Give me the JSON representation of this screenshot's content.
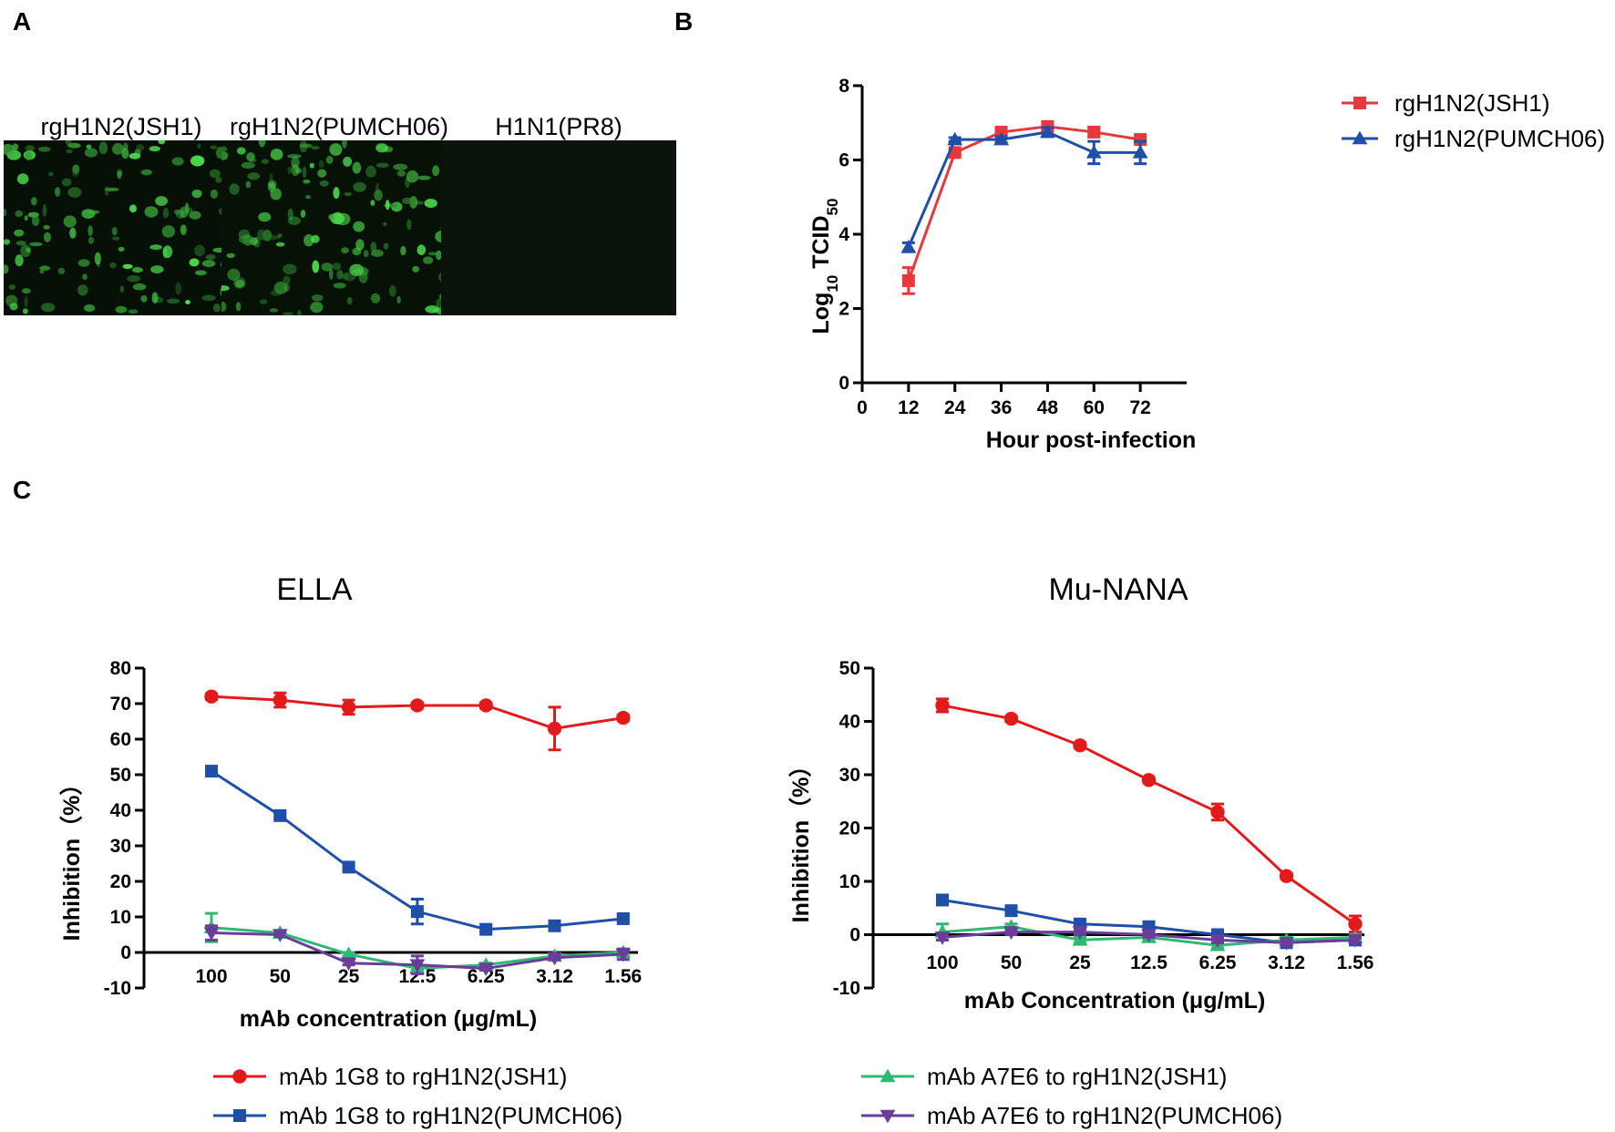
{
  "panels": {
    "a": "A",
    "b": "B",
    "c": "C"
  },
  "micrographs": [
    {
      "label": "rgH1N2(JSH1)",
      "brightness": 0.85
    },
    {
      "label": "rgH1N2(PUMCH06)",
      "brightness": 0.9
    },
    {
      "label": "H1N1(PR8)",
      "brightness": 0.0
    }
  ],
  "chart_data": [
    {
      "id": "B",
      "type": "line",
      "x": [
        12,
        24,
        36,
        48,
        60,
        72
      ],
      "xticks": [
        "0",
        "12",
        "24",
        "36",
        "48",
        "60",
        "72"
      ],
      "xlim": [
        0,
        84
      ],
      "ylim": [
        0,
        8
      ],
      "yticks": [
        "0",
        "2",
        "4",
        "6",
        "8"
      ],
      "xlabel": "Hour post-infection",
      "ylabel": "Log10 TCID50",
      "ylabel_main": "Log",
      "ylabel_sub1": "10",
      "ylabel_mid": " TCID",
      "ylabel_sub2": "50",
      "legend_position": "right",
      "series": [
        {
          "name": "rgH1N2(JSH1)",
          "color": "#e8383b",
          "marker": "square",
          "values": [
            2.75,
            6.2,
            6.75,
            6.9,
            6.75,
            6.55
          ],
          "err": [
            0.35,
            0.05,
            0.1,
            0.1,
            0.12,
            0.08
          ]
        },
        {
          "name": "rgH1N2(PUMCH06)",
          "color": "#1f4fa8",
          "marker": "triangle",
          "values": [
            3.65,
            6.55,
            6.55,
            6.75,
            6.2,
            6.2
          ],
          "err": [
            0.12,
            0.05,
            0.08,
            0.12,
            0.3,
            0.3
          ]
        }
      ]
    },
    {
      "id": "C-ELLA",
      "type": "line",
      "title": "ELLA",
      "categories": [
        "100",
        "50",
        "25",
        "12.5",
        "6.25",
        "3.12",
        "1.56"
      ],
      "ylim": [
        -10,
        80
      ],
      "yticks": [
        "-10",
        "0",
        "10",
        "20",
        "30",
        "40",
        "50",
        "60",
        "70",
        "80"
      ],
      "xlabel": "mAb concentration (μg/mL)",
      "ylabel": "Inhibition（%）",
      "series": [
        {
          "name": "mAb 1G8 to rgH1N2(JSH1)",
          "color": "#e31a1c",
          "marker": "circle",
          "values": [
            72,
            71,
            69,
            69.5,
            69.5,
            63,
            66
          ],
          "err": [
            0.8,
            2,
            2,
            0.8,
            0.8,
            6,
            0.8
          ]
        },
        {
          "name": "mAb 1G8 to rgH1N2(PUMCH06)",
          "color": "#1f4fa8",
          "marker": "square",
          "values": [
            51,
            38.5,
            24,
            11.5,
            6.5,
            7.5,
            9.5
          ],
          "err": [
            0.8,
            0.8,
            0.8,
            3.5,
            0.8,
            0.8,
            0.8
          ]
        },
        {
          "name": "mAb A7E6 to rgH1N2(JSH1)",
          "color": "#2eb872",
          "marker": "triangle",
          "values": [
            7,
            5.5,
            -0.5,
            -4.5,
            -3.5,
            -1,
            0
          ],
          "err": [
            4,
            0.5,
            0.5,
            0.5,
            0.5,
            0.5,
            0.5
          ]
        },
        {
          "name": "mAb A7E6 to rgH1N2(PUMCH06)",
          "color": "#6a3d9a",
          "marker": "triangle-down",
          "values": [
            5.5,
            5,
            -3,
            -3.5,
            -4.5,
            -1.5,
            -0.5
          ],
          "err": [
            2,
            0.5,
            0.5,
            2.5,
            0.5,
            0.5,
            1.5
          ]
        }
      ]
    },
    {
      "id": "C-MuNANA",
      "type": "line",
      "title": "Mu-NANA",
      "categories": [
        "100",
        "50",
        "25",
        "12.5",
        "6.25",
        "3.12",
        "1.56"
      ],
      "ylim": [
        -10,
        50
      ],
      "yticks": [
        "-10",
        "0",
        "10",
        "20",
        "30",
        "40",
        "50"
      ],
      "xlabel": "mAb Concentration (μg/mL)",
      "ylabel": "Inhibition（%）",
      "series": [
        {
          "name": "mAb 1G8 to rgH1N2(JSH1)",
          "color": "#e31a1c",
          "marker": "circle",
          "values": [
            43,
            40.5,
            35.5,
            29,
            23,
            11,
            2
          ],
          "err": [
            1.2,
            0.5,
            0.5,
            0.5,
            1.5,
            0.5,
            1.5
          ]
        },
        {
          "name": "mAb 1G8 to rgH1N2(PUMCH06)",
          "color": "#1f4fa8",
          "marker": "square",
          "values": [
            6.5,
            4.5,
            2,
            1.5,
            0,
            -1.5,
            -1
          ],
          "err": [
            0.5,
            0.5,
            0.5,
            0.5,
            0.5,
            0.5,
            0.5
          ]
        },
        {
          "name": "mAb A7E6 to rgH1N2(JSH1)",
          "color": "#2eb872",
          "marker": "triangle",
          "values": [
            0.5,
            1.5,
            -1,
            -0.5,
            -2,
            -1,
            -0.5
          ],
          "err": [
            1.5,
            0.5,
            0.5,
            0.5,
            0.5,
            0.5,
            0.5
          ]
        },
        {
          "name": "mAb A7E6 to rgH1N2(PUMCH06)",
          "color": "#6a3d9a",
          "marker": "triangle-down",
          "values": [
            -0.5,
            0.5,
            0.5,
            0,
            -1,
            -1.5,
            -1
          ],
          "err": [
            0.5,
            0.5,
            0.5,
            0.5,
            0.5,
            0.5,
            0.5
          ]
        }
      ]
    }
  ]
}
